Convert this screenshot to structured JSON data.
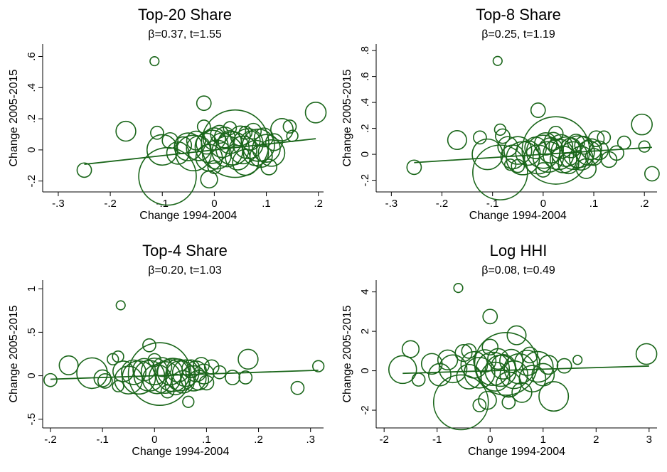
{
  "chart_data": [
    {
      "type": "scatter",
      "title": "Top-20 Share",
      "subtitle": "β=0.37, t=1.55",
      "xlabel": "Change 1994-2004",
      "ylabel": "Change 2005-2015",
      "xlim": [
        -0.33,
        0.21
      ],
      "ylim": [
        -0.27,
        0.68
      ],
      "xticks": [
        -0.3,
        -0.2,
        -0.1,
        0,
        0.1,
        0.2
      ],
      "xticklabels": [
        "-.3",
        "-.2",
        "-.1",
        "0",
        ".1",
        ".2"
      ],
      "yticks": [
        -0.2,
        0,
        0.2,
        0.4,
        0.6
      ],
      "yticklabels": [
        "-.2",
        "0",
        ".2",
        ".4",
        ".6"
      ],
      "fit": {
        "slope": 0.37,
        "intercept": 0.0,
        "x_range": [
          -0.25,
          0.195
        ]
      },
      "points": [
        {
          "x": -0.25,
          "y": -0.13,
          "w": 0.4
        },
        {
          "x": -0.17,
          "y": 0.12,
          "w": 0.9
        },
        {
          "x": -0.115,
          "y": 0.57,
          "w": 0.1
        },
        {
          "x": -0.11,
          "y": 0.11,
          "w": 0.3
        },
        {
          "x": -0.1,
          "y": 0.0,
          "w": 2.5
        },
        {
          "x": -0.09,
          "y": -0.17,
          "w": 10.0
        },
        {
          "x": -0.085,
          "y": 0.06,
          "w": 0.5
        },
        {
          "x": -0.07,
          "y": -0.02,
          "w": 1.2
        },
        {
          "x": -0.06,
          "y": 0.03,
          "w": 0.6
        },
        {
          "x": -0.05,
          "y": 0.02,
          "w": 2.0
        },
        {
          "x": -0.04,
          "y": -0.02,
          "w": 3.5
        },
        {
          "x": -0.035,
          "y": 0.06,
          "w": 0.8
        },
        {
          "x": -0.03,
          "y": 0.01,
          "w": 1.5
        },
        {
          "x": -0.02,
          "y": 0.3,
          "w": 0.4
        },
        {
          "x": -0.015,
          "y": 0.04,
          "w": 1.0
        },
        {
          "x": -0.01,
          "y": -0.05,
          "w": 1.8
        },
        {
          "x": -0.01,
          "y": -0.19,
          "w": 0.6
        },
        {
          "x": -0.005,
          "y": 0.02,
          "w": 3.0
        },
        {
          "x": 0.0,
          "y": 0.07,
          "w": 1.2
        },
        {
          "x": 0.005,
          "y": -0.03,
          "w": 2.2
        },
        {
          "x": 0.01,
          "y": 0.1,
          "w": 0.7
        },
        {
          "x": 0.015,
          "y": 0.03,
          "w": 1.5
        },
        {
          "x": 0.02,
          "y": 0.08,
          "w": 1.0
        },
        {
          "x": 0.025,
          "y": -0.01,
          "w": 2.5
        },
        {
          "x": 0.03,
          "y": 0.05,
          "w": 1.3
        },
        {
          "x": 0.035,
          "y": 0.01,
          "w": 3.0
        },
        {
          "x": 0.04,
          "y": 0.04,
          "w": 14.0
        },
        {
          "x": 0.045,
          "y": -0.05,
          "w": 1.5
        },
        {
          "x": 0.05,
          "y": 0.09,
          "w": 0.9
        },
        {
          "x": 0.055,
          "y": 0.0,
          "w": 2.0
        },
        {
          "x": 0.06,
          "y": -0.08,
          "w": 1.7
        },
        {
          "x": 0.065,
          "y": 0.04,
          "w": 2.4
        },
        {
          "x": 0.07,
          "y": 0.06,
          "w": 0.8
        },
        {
          "x": 0.075,
          "y": 0.12,
          "w": 0.5
        },
        {
          "x": 0.08,
          "y": -0.02,
          "w": 1.6
        },
        {
          "x": 0.085,
          "y": 0.03,
          "w": 2.8
        },
        {
          "x": 0.09,
          "y": -0.04,
          "w": 1.2
        },
        {
          "x": 0.095,
          "y": 0.08,
          "w": 0.8
        },
        {
          "x": 0.1,
          "y": 0.01,
          "w": 2.0
        },
        {
          "x": 0.105,
          "y": -0.11,
          "w": 0.5
        },
        {
          "x": 0.11,
          "y": -0.02,
          "w": 1.8
        },
        {
          "x": 0.115,
          "y": 0.05,
          "w": 0.6
        },
        {
          "x": 0.13,
          "y": 0.13,
          "w": 1.2
        },
        {
          "x": 0.145,
          "y": 0.15,
          "w": 0.3
        },
        {
          "x": 0.15,
          "y": 0.09,
          "w": 0.2
        },
        {
          "x": 0.195,
          "y": 0.24,
          "w": 1.0
        },
        {
          "x": -0.02,
          "y": 0.15,
          "w": 0.3
        },
        {
          "x": 0.0,
          "y": -0.11,
          "w": 0.3
        },
        {
          "x": 0.03,
          "y": 0.14,
          "w": 0.3
        },
        {
          "x": 0.06,
          "y": 0.11,
          "w": 0.3
        }
      ]
    },
    {
      "type": "scatter",
      "title": "Top-8 Share",
      "subtitle": "β=0.25, t=1.19",
      "xlabel": "Change 1994-2004",
      "ylabel": "Change 2005-2015",
      "xlim": [
        -0.33,
        0.225
      ],
      "ylim": [
        -0.29,
        0.85
      ],
      "xticks": [
        -0.3,
        -0.2,
        -0.1,
        0,
        0.1,
        0.2
      ],
      "xticklabels": [
        "-.3",
        "-.2",
        "-.1",
        "0",
        ".1",
        ".2"
      ],
      "yticks": [
        -0.2,
        0,
        0.2,
        0.4,
        0.6,
        0.8
      ],
      "yticklabels": [
        "-.2",
        "0",
        ".2",
        ".4",
        ".6",
        ".8"
      ],
      "fit": {
        "slope": 0.25,
        "intercept": 0.0,
        "x_range": [
          -0.255,
          0.215
        ]
      },
      "points": [
        {
          "x": -0.255,
          "y": -0.1,
          "w": 0.4
        },
        {
          "x": -0.17,
          "y": 0.11,
          "w": 0.8
        },
        {
          "x": -0.125,
          "y": 0.13,
          "w": 0.3
        },
        {
          "x": -0.11,
          "y": 0.0,
          "w": 2.5
        },
        {
          "x": -0.09,
          "y": 0.72,
          "w": 0.1
        },
        {
          "x": -0.085,
          "y": -0.14,
          "w": 9.0
        },
        {
          "x": -0.085,
          "y": 0.19,
          "w": 0.2
        },
        {
          "x": -0.08,
          "y": 0.14,
          "w": 0.4
        },
        {
          "x": -0.07,
          "y": 0.06,
          "w": 0.9
        },
        {
          "x": -0.06,
          "y": -0.02,
          "w": 1.4
        },
        {
          "x": -0.05,
          "y": 0.03,
          "w": 2.0
        },
        {
          "x": -0.04,
          "y": -0.03,
          "w": 3.0
        },
        {
          "x": -0.03,
          "y": 0.01,
          "w": 1.5
        },
        {
          "x": -0.01,
          "y": 0.34,
          "w": 0.4
        },
        {
          "x": -0.015,
          "y": 0.05,
          "w": 1.1
        },
        {
          "x": -0.01,
          "y": -0.04,
          "w": 2.2
        },
        {
          "x": 0.0,
          "y": 0.02,
          "w": 3.0
        },
        {
          "x": 0.005,
          "y": 0.08,
          "w": 1.2
        },
        {
          "x": 0.01,
          "y": -0.02,
          "w": 2.5
        },
        {
          "x": 0.015,
          "y": 0.03,
          "w": 1.6
        },
        {
          "x": 0.02,
          "y": 0.1,
          "w": 0.7
        },
        {
          "x": 0.025,
          "y": 0.03,
          "w": 14.0
        },
        {
          "x": 0.03,
          "y": 0.0,
          "w": 2.5
        },
        {
          "x": 0.035,
          "y": 0.06,
          "w": 1.4
        },
        {
          "x": 0.04,
          "y": -0.04,
          "w": 1.8
        },
        {
          "x": 0.045,
          "y": 0.02,
          "w": 2.3
        },
        {
          "x": 0.05,
          "y": -0.07,
          "w": 1.0
        },
        {
          "x": 0.055,
          "y": 0.05,
          "w": 0.9
        },
        {
          "x": 0.06,
          "y": -0.01,
          "w": 2.0
        },
        {
          "x": 0.065,
          "y": 0.09,
          "w": 0.6
        },
        {
          "x": 0.07,
          "y": 0.02,
          "w": 2.7
        },
        {
          "x": 0.075,
          "y": -0.03,
          "w": 1.4
        },
        {
          "x": 0.08,
          "y": 0.07,
          "w": 0.7
        },
        {
          "x": 0.085,
          "y": -0.11,
          "w": 0.9
        },
        {
          "x": 0.09,
          "y": 0.01,
          "w": 1.5
        },
        {
          "x": 0.095,
          "y": 0.04,
          "w": 1.0
        },
        {
          "x": 0.1,
          "y": -0.02,
          "w": 0.6
        },
        {
          "x": 0.105,
          "y": 0.12,
          "w": 0.5
        },
        {
          "x": 0.11,
          "y": 0.03,
          "w": 0.8
        },
        {
          "x": 0.12,
          "y": 0.13,
          "w": 0.3
        },
        {
          "x": 0.13,
          "y": -0.04,
          "w": 0.5
        },
        {
          "x": 0.145,
          "y": 0.01,
          "w": 0.4
        },
        {
          "x": 0.16,
          "y": 0.09,
          "w": 0.3
        },
        {
          "x": 0.195,
          "y": 0.23,
          "w": 1.0
        },
        {
          "x": 0.2,
          "y": 0.06,
          "w": 0.2
        },
        {
          "x": 0.215,
          "y": -0.15,
          "w": 0.4
        },
        {
          "x": -0.05,
          "y": -0.09,
          "w": 0.3
        },
        {
          "x": 0.0,
          "y": -0.12,
          "w": 0.4
        },
        {
          "x": 0.025,
          "y": 0.16,
          "w": 0.4
        },
        {
          "x": -0.065,
          "y": -0.08,
          "w": 0.2
        }
      ]
    },
    {
      "type": "scatter",
      "title": "Top-4 Share",
      "subtitle": "β=0.20, t=1.03",
      "xlabel": "Change 1994-2004",
      "ylabel": "Change 2005-2015",
      "xlim": [
        -0.215,
        0.325
      ],
      "ylim": [
        -0.6,
        1.1
      ],
      "xticks": [
        -0.2,
        -0.1,
        0,
        0.1,
        0.2,
        0.3
      ],
      "xticklabels": [
        "-.2",
        "-.1",
        "0",
        ".1",
        ".2",
        ".3"
      ],
      "yticks": [
        -0.5,
        0,
        0.5,
        1
      ],
      "yticklabels": [
        "-.5",
        "0",
        ".5",
        "1"
      ],
      "fit": {
        "slope": 0.2,
        "intercept": 0.0,
        "x_range": [
          -0.2,
          0.315
        ]
      },
      "points": [
        {
          "x": -0.2,
          "y": -0.05,
          "w": 0.3
        },
        {
          "x": -0.165,
          "y": 0.12,
          "w": 0.8
        },
        {
          "x": -0.12,
          "y": 0.03,
          "w": 2.5
        },
        {
          "x": -0.1,
          "y": -0.03,
          "w": 0.6
        },
        {
          "x": -0.095,
          "y": -0.06,
          "w": 0.4
        },
        {
          "x": -0.065,
          "y": 0.81,
          "w": 0.1
        },
        {
          "x": -0.07,
          "y": 0.22,
          "w": 0.2
        },
        {
          "x": -0.06,
          "y": 0.05,
          "w": 1.0
        },
        {
          "x": -0.05,
          "y": -0.05,
          "w": 2.0
        },
        {
          "x": -0.04,
          "y": 0.04,
          "w": 1.5
        },
        {
          "x": -0.03,
          "y": -0.02,
          "w": 3.0
        },
        {
          "x": -0.02,
          "y": 0.07,
          "w": 1.2
        },
        {
          "x": -0.01,
          "y": 0.35,
          "w": 0.3
        },
        {
          "x": -0.01,
          "y": 0.0,
          "w": 2.5
        },
        {
          "x": 0.0,
          "y": 0.05,
          "w": 1.8
        },
        {
          "x": 0.005,
          "y": -0.04,
          "w": 2.2
        },
        {
          "x": 0.01,
          "y": 0.02,
          "w": 12.0
        },
        {
          "x": 0.015,
          "y": 0.1,
          "w": 0.8
        },
        {
          "x": 0.02,
          "y": -0.02,
          "w": 2.7
        },
        {
          "x": 0.03,
          "y": 0.04,
          "w": 1.6
        },
        {
          "x": 0.035,
          "y": 0.01,
          "w": 3.0
        },
        {
          "x": 0.04,
          "y": -0.1,
          "w": 1.0
        },
        {
          "x": 0.045,
          "y": 0.06,
          "w": 1.3
        },
        {
          "x": 0.05,
          "y": 0.0,
          "w": 2.4
        },
        {
          "x": 0.055,
          "y": -0.07,
          "w": 1.2
        },
        {
          "x": 0.06,
          "y": 0.03,
          "w": 1.8
        },
        {
          "x": 0.065,
          "y": -0.3,
          "w": 0.2
        },
        {
          "x": 0.07,
          "y": 0.08,
          "w": 0.7
        },
        {
          "x": 0.075,
          "y": -0.03,
          "w": 1.6
        },
        {
          "x": 0.08,
          "y": 0.05,
          "w": 1.0
        },
        {
          "x": 0.085,
          "y": -0.05,
          "w": 0.9
        },
        {
          "x": 0.09,
          "y": 0.12,
          "w": 0.5
        },
        {
          "x": 0.095,
          "y": 0.02,
          "w": 0.9
        },
        {
          "x": 0.1,
          "y": -0.08,
          "w": 0.4
        },
        {
          "x": 0.11,
          "y": 0.1,
          "w": 0.4
        },
        {
          "x": 0.125,
          "y": 0.04,
          "w": 0.3
        },
        {
          "x": 0.15,
          "y": -0.02,
          "w": 0.4
        },
        {
          "x": 0.175,
          "y": -0.02,
          "w": 0.3
        },
        {
          "x": 0.18,
          "y": 0.19,
          "w": 0.9
        },
        {
          "x": 0.275,
          "y": -0.14,
          "w": 0.3
        },
        {
          "x": 0.315,
          "y": 0.11,
          "w": 0.2
        },
        {
          "x": -0.08,
          "y": 0.19,
          "w": 0.2
        },
        {
          "x": -0.07,
          "y": -0.12,
          "w": 0.2
        },
        {
          "x": 0.0,
          "y": 0.18,
          "w": 0.3
        },
        {
          "x": 0.025,
          "y": -0.18,
          "w": 0.3
        }
      ]
    },
    {
      "type": "scatter",
      "title": "Log HHI",
      "subtitle": "β=0.08, t=0.49",
      "xlabel": "Change 1994-2004",
      "ylabel": "Change 2005-2015",
      "xlim": [
        -2.15,
        3.15
      ],
      "ylim": [
        -2.9,
        4.6
      ],
      "xticks": [
        -2,
        -1,
        0,
        1,
        2,
        3
      ],
      "xticklabels": [
        "-2",
        "-1",
        "0",
        "1",
        "2",
        "3"
      ],
      "yticks": [
        -2,
        0,
        2,
        4
      ],
      "yticklabels": [
        "-2",
        "0",
        "2",
        "4"
      ],
      "fit": {
        "slope": 0.08,
        "intercept": 0.0,
        "x_range": [
          -1.65,
          3.0
        ]
      },
      "points": [
        {
          "x": -1.65,
          "y": 0.06,
          "w": 2.0
        },
        {
          "x": -1.5,
          "y": 1.1,
          "w": 0.6
        },
        {
          "x": -1.35,
          "y": -0.45,
          "w": 0.3
        },
        {
          "x": -1.1,
          "y": 0.35,
          "w": 1.0
        },
        {
          "x": -0.95,
          "y": -0.2,
          "w": 1.2
        },
        {
          "x": -0.8,
          "y": 0.55,
          "w": 0.9
        },
        {
          "x": -0.7,
          "y": 0.1,
          "w": 2.0
        },
        {
          "x": -0.6,
          "y": 4.2,
          "w": 0.1
        },
        {
          "x": -0.55,
          "y": -1.6,
          "w": 9.0
        },
        {
          "x": -0.5,
          "y": 0.9,
          "w": 0.6
        },
        {
          "x": -0.4,
          "y": -0.3,
          "w": 1.5
        },
        {
          "x": -0.3,
          "y": 0.3,
          "w": 1.8
        },
        {
          "x": -0.2,
          "y": -0.1,
          "w": 2.5
        },
        {
          "x": -0.1,
          "y": 0.5,
          "w": 1.2
        },
        {
          "x": 0.0,
          "y": 2.75,
          "w": 0.4
        },
        {
          "x": -0.05,
          "y": -1.5,
          "w": 0.7
        },
        {
          "x": 0.05,
          "y": 0.1,
          "w": 3.0
        },
        {
          "x": 0.1,
          "y": -0.3,
          "w": 2.2
        },
        {
          "x": 0.15,
          "y": 0.6,
          "w": 1.0
        },
        {
          "x": 0.2,
          "y": 0.0,
          "w": 2.6
        },
        {
          "x": 0.25,
          "y": 0.2,
          "w": 1.5
        },
        {
          "x": 0.3,
          "y": 0.35,
          "w": 12.0
        },
        {
          "x": 0.35,
          "y": -0.7,
          "w": 1.6
        },
        {
          "x": 0.4,
          "y": 0.5,
          "w": 1.3
        },
        {
          "x": 0.45,
          "y": -0.2,
          "w": 2.0
        },
        {
          "x": 0.5,
          "y": 1.8,
          "w": 0.8
        },
        {
          "x": 0.55,
          "y": 0.1,
          "w": 2.4
        },
        {
          "x": 0.6,
          "y": -1.1,
          "w": 0.9
        },
        {
          "x": 0.7,
          "y": 0.4,
          "w": 1.6
        },
        {
          "x": 0.75,
          "y": 0.8,
          "w": 0.5
        },
        {
          "x": 0.8,
          "y": -0.4,
          "w": 1.8
        },
        {
          "x": 0.9,
          "y": 0.2,
          "w": 2.5
        },
        {
          "x": 1.0,
          "y": -0.2,
          "w": 1.2
        },
        {
          "x": 1.1,
          "y": 0.3,
          "w": 0.8
        },
        {
          "x": 1.2,
          "y": -1.3,
          "w": 2.3
        },
        {
          "x": 1.4,
          "y": 0.25,
          "w": 0.4
        },
        {
          "x": 1.65,
          "y": 0.55,
          "w": 0.1
        },
        {
          "x": 2.95,
          "y": 0.85,
          "w": 1.0
        },
        {
          "x": -0.2,
          "y": -1.75,
          "w": 0.3
        },
        {
          "x": 0.0,
          "y": 1.2,
          "w": 0.5
        },
        {
          "x": -0.4,
          "y": 1.0,
          "w": 0.4
        },
        {
          "x": 0.35,
          "y": -1.6,
          "w": 0.3
        }
      ]
    }
  ],
  "colors": {
    "marker": "#1a661a",
    "fit": "#1a661a",
    "axis": "#000000"
  }
}
